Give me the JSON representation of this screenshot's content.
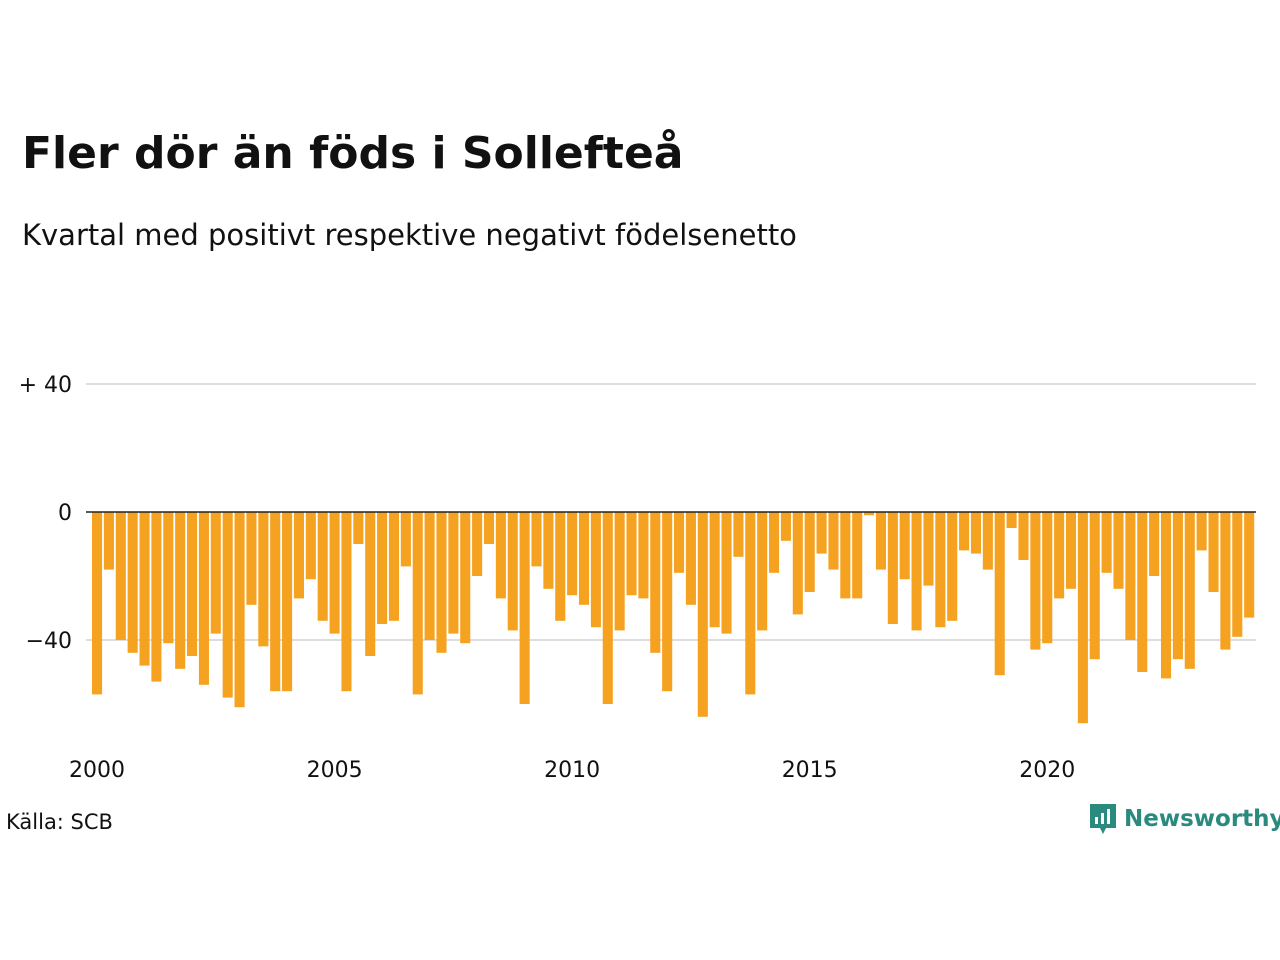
{
  "title": "Fler dör än föds i Sollefteå",
  "subtitle": "Kvartal med positivt respektive negativt födelsenetto",
  "source": "Källa: SCB",
  "brand": {
    "name": "Newsworthy",
    "icon": "newsworthy-logo-icon",
    "color": "#2a8a7e"
  },
  "colors": {
    "bar": "#f5a221",
    "grid": "#dddddd",
    "zero_line": "#222222"
  },
  "chart_data": {
    "type": "bar",
    "title": "Fler dör än föds i Sollefteå",
    "subtitle": "Kvartal med positivt respektive negativt födelsenetto",
    "xlabel": "",
    "ylabel": "",
    "ylim": [
      -70,
      40
    ],
    "y_ticks": [
      {
        "value": 40,
        "label": "+ 40"
      },
      {
        "value": 0,
        "label": "0"
      },
      {
        "value": -40,
        "label": "−40"
      }
    ],
    "x_ticks": [
      {
        "year": 2000,
        "label": "2000"
      },
      {
        "year": 2005,
        "label": "2005"
      },
      {
        "year": 2010,
        "label": "2010"
      },
      {
        "year": 2015,
        "label": "2015"
      },
      {
        "year": 2020,
        "label": "2020"
      }
    ],
    "grid": true,
    "legend": "none",
    "first_quarter": "2000Q1",
    "values": [
      -57,
      -18,
      -40,
      -44,
      -48,
      -53,
      -41,
      -49,
      -45,
      -54,
      -38,
      -58,
      -61,
      -29,
      -42,
      -56,
      -56,
      -27,
      -21,
      -34,
      -38,
      -56,
      -10,
      -45,
      -35,
      -34,
      -17,
      -57,
      -40,
      -44,
      -38,
      -41,
      -20,
      -10,
      -27,
      -37,
      -60,
      -17,
      -24,
      -34,
      -26,
      -29,
      -36,
      -60,
      -37,
      -26,
      -27,
      -44,
      -56,
      -19,
      -29,
      -64,
      -36,
      -38,
      -14,
      -57,
      -37,
      -19,
      -9,
      -32,
      -25,
      -13,
      -18,
      -27,
      -27,
      -1,
      -18,
      -35,
      -21,
      -37,
      -23,
      -36,
      -34,
      -12,
      -13,
      -18,
      -51,
      -5,
      -15,
      -43,
      -41,
      -27,
      -24,
      -66,
      -46,
      -19,
      -24,
      -40,
      -50,
      -20,
      -52,
      -46,
      -49,
      -12,
      -25,
      -43,
      -39,
      -33
    ]
  }
}
